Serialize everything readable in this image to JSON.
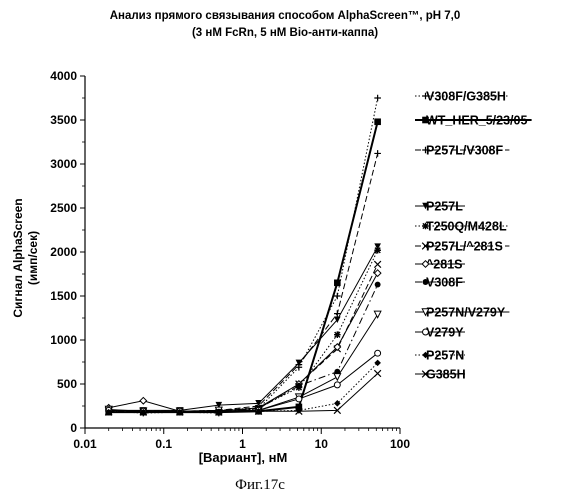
{
  "title_line1": "Анализ прямого связывания  способом  AlphaScreen™, pH 7,0",
  "title_line2": "(3 нМ FcRn, 5 нМ Bio-анти-каппа)",
  "caption": "Фиг.17с",
  "chart_data": {
    "type": "line",
    "xlabel": "[Вариант], нМ",
    "ylabel_line1": "Сигнал AlphaScreen",
    "ylabel_line2": "(имп/сек)",
    "x_scale": "log",
    "xlim": [
      0.01,
      100
    ],
    "ylim": [
      0,
      4000
    ],
    "x_ticks": [
      "0.01",
      "0.1",
      "1",
      "10",
      "100"
    ],
    "y_ticks": [
      "0",
      "500",
      "1000",
      "1500",
      "2000",
      "2500",
      "3000",
      "3500",
      "4000"
    ],
    "grid": false,
    "legend_position": "right",
    "x": [
      0.02,
      0.055,
      0.16,
      0.5,
      1.6,
      5.2,
      16,
      52
    ],
    "series": [
      {
        "name": "V308F/G385H",
        "style": "dotted",
        "marker": "plus",
        "values": [
          190,
          170,
          180,
          170,
          220,
          690,
          1500,
          3750
        ]
      },
      {
        "name": "WT_HER_5/23/05",
        "style": "solid-bold",
        "marker": "filled-square",
        "values": [
          180,
          180,
          180,
          180,
          190,
          240,
          1650,
          3480
        ]
      },
      {
        "name": "P257L/V308F",
        "style": "dashed",
        "marker": "plus",
        "values": [
          200,
          190,
          190,
          200,
          250,
          720,
          1300,
          3120
        ]
      },
      {
        "name": "P257L",
        "style": "solid",
        "marker": "filled-triangle-down",
        "values": [
          200,
          200,
          200,
          260,
          280,
          740,
          1230,
          2060
        ]
      },
      {
        "name": "T250Q/M428L",
        "style": "dotted",
        "marker": "filled-star",
        "values": [
          190,
          190,
          190,
          200,
          230,
          460,
          1060,
          2020
        ]
      },
      {
        "name": "P257L/^281S",
        "style": "dashed",
        "marker": "x",
        "values": [
          190,
          190,
          190,
          200,
          220,
          500,
          900,
          1860
        ]
      },
      {
        "name": "^281S",
        "style": "solid",
        "marker": "open-diamond",
        "values": [
          230,
          310,
          190,
          190,
          230,
          500,
          920,
          1760
        ]
      },
      {
        "name": "V308F",
        "style": "dashdot",
        "marker": "filled-circle",
        "values": [
          180,
          180,
          190,
          180,
          220,
          480,
          640,
          1630
        ]
      },
      {
        "name": "P257N/V279Y",
        "style": "solid",
        "marker": "open-triangle-down",
        "values": [
          210,
          190,
          190,
          200,
          200,
          350,
          580,
          1290
        ]
      },
      {
        "name": "V279Y",
        "style": "solid",
        "marker": "open-circle",
        "values": [
          200,
          190,
          190,
          180,
          200,
          330,
          490,
          850
        ]
      },
      {
        "name": "P257N",
        "style": "dotted",
        "marker": "filled-diamond",
        "values": [
          180,
          180,
          180,
          180,
          190,
          200,
          280,
          740
        ]
      },
      {
        "name": "G385H",
        "style": "solid",
        "marker": "x",
        "values": [
          180,
          180,
          180,
          180,
          190,
          190,
          200,
          620
        ]
      }
    ]
  }
}
